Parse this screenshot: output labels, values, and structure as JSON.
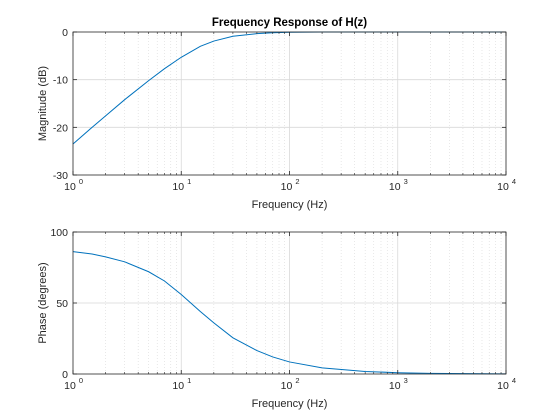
{
  "colors": {
    "line": "#0072BD",
    "grid": "#d9d9d9",
    "axis": "#262626",
    "background": "#ffffff"
  },
  "chart_data": [
    {
      "type": "line",
      "title": "Frequency Response of H(z)",
      "xlabel": "Frequency (Hz)",
      "ylabel": "Magnitude (dB)",
      "xscale": "log",
      "xlim": [
        1,
        10000
      ],
      "ylim": [
        -30,
        0
      ],
      "grid": true,
      "xtick_labels": [
        "10^0",
        "10^1",
        "10^2",
        "10^3",
        "10^4"
      ],
      "ytick_labels": [
        "-30",
        "-20",
        "-10",
        "0"
      ],
      "series": [
        {
          "x": [
            1,
            1.5,
            2,
            3,
            5,
            7,
            10,
            15,
            20,
            30,
            50,
            70,
            100,
            200,
            500,
            1000,
            10000
          ],
          "y": [
            -23.5,
            -20.0,
            -17.6,
            -14.2,
            -10.2,
            -7.7,
            -5.3,
            -3.0,
            -1.9,
            -0.9,
            -0.35,
            -0.15,
            -0.05,
            0,
            0,
            0,
            0
          ]
        }
      ]
    },
    {
      "type": "line",
      "title": "",
      "xlabel": "Frequency (Hz)",
      "ylabel": "Phase (degrees)",
      "xscale": "log",
      "xlim": [
        1,
        10000
      ],
      "ylim": [
        0,
        100
      ],
      "grid": true,
      "xtick_labels": [
        "10^0",
        "10^1",
        "10^2",
        "10^3",
        "10^4"
      ],
      "ytick_labels": [
        "0",
        "50",
        "100"
      ],
      "series": [
        {
          "x": [
            1,
            1.5,
            2,
            3,
            5,
            7,
            10,
            15,
            20,
            30,
            50,
            70,
            100,
            200,
            500,
            1000,
            2000,
            10000
          ],
          "y": [
            86.2,
            84.5,
            82.5,
            79.0,
            72.0,
            65.5,
            56.0,
            44.0,
            36.0,
            25.5,
            16.5,
            12.0,
            8.5,
            4.3,
            1.8,
            0.9,
            0.4,
            0.1
          ]
        }
      ]
    }
  ]
}
